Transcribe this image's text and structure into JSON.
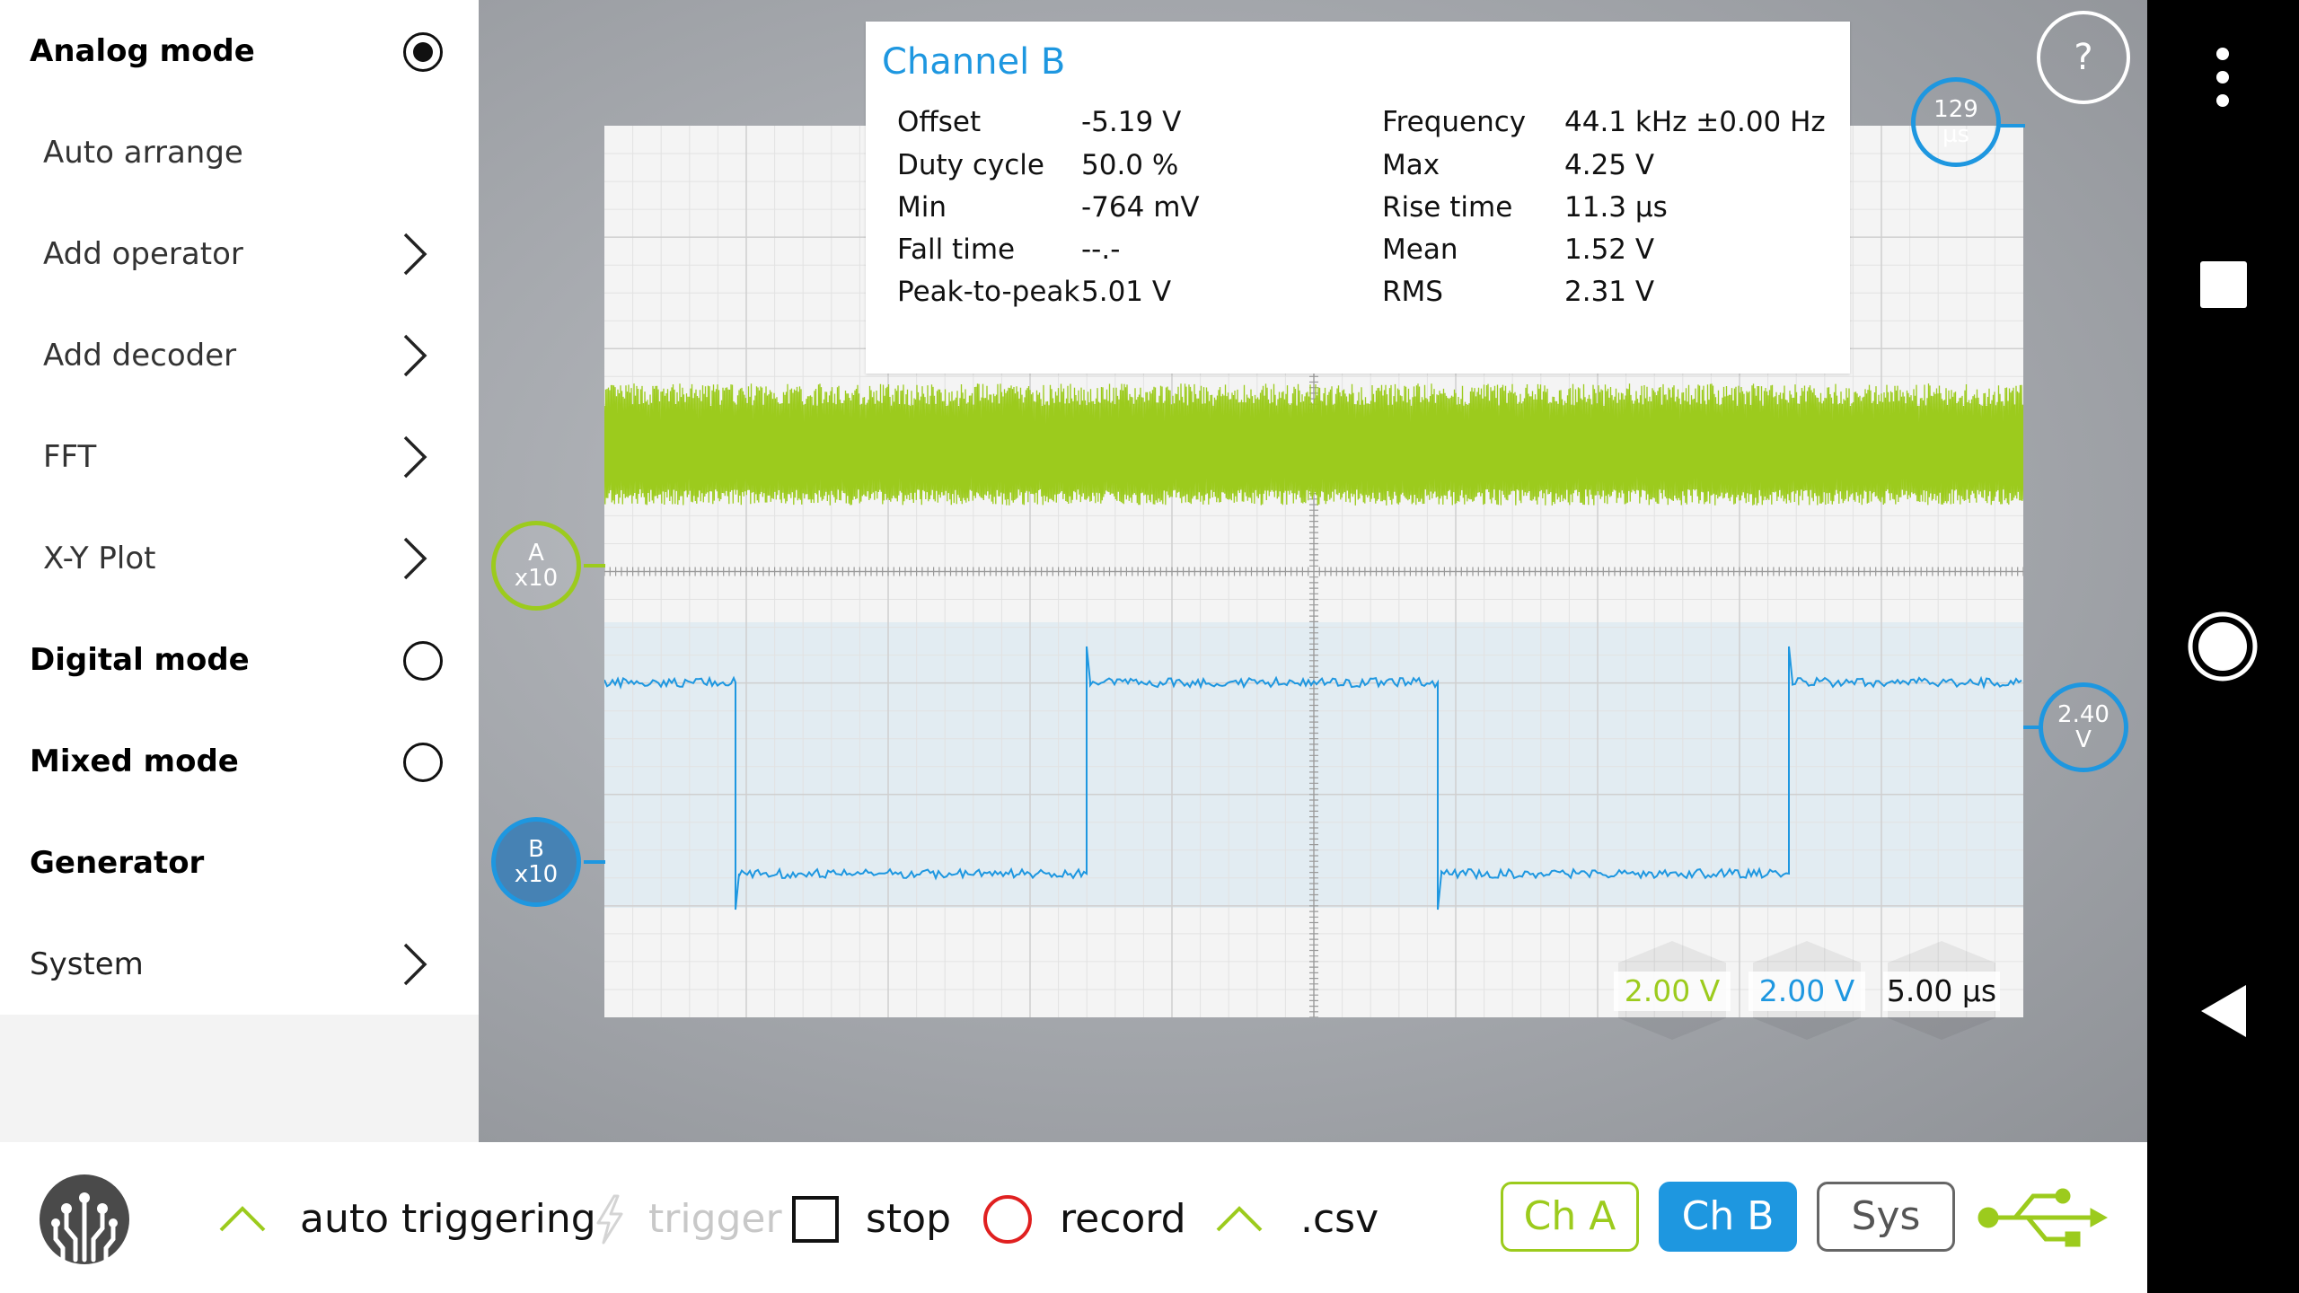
{
  "sidebar": {
    "items": [
      {
        "label": "Analog mode",
        "kind": "mode",
        "selected": true
      },
      {
        "label": "Auto arrange",
        "kind": "sub"
      },
      {
        "label": "Add operator",
        "kind": "sub-chevron"
      },
      {
        "label": "Add decoder",
        "kind": "sub-chevron"
      },
      {
        "label": "FFT",
        "kind": "sub-chevron"
      },
      {
        "label": "X-Y Plot",
        "kind": "sub-chevron"
      },
      {
        "label": "Digital mode",
        "kind": "mode",
        "selected": false
      },
      {
        "label": "Mixed mode",
        "kind": "mode",
        "selected": false
      },
      {
        "label": "Generator",
        "kind": "section"
      },
      {
        "label": "System",
        "kind": "chevron"
      }
    ]
  },
  "measurements": {
    "title": "Channel B",
    "left": [
      {
        "label": "Offset",
        "value": "-5.19 V"
      },
      {
        "label": "Duty cycle",
        "value": "50.0  %"
      },
      {
        "label": "Min",
        "value": "-764  mV"
      },
      {
        "label": "Fall time",
        "value": "--.-"
      },
      {
        "label": "Peak-to-peak",
        "value": "5.01  V"
      }
    ],
    "right": [
      {
        "label": "Frequency",
        "value": "44.1  kHz ±0.00  Hz"
      },
      {
        "label": "Max",
        "value": "4.25  V"
      },
      {
        "label": "Rise time",
        "value": "11.3  µs"
      },
      {
        "label": "Mean",
        "value": "1.52  V"
      },
      {
        "label": "RMS",
        "value": "2.31  V"
      }
    ]
  },
  "markers": {
    "channel_a": {
      "line1": "A",
      "line2": "x10"
    },
    "channel_b": {
      "line1": "B",
      "line2": "x10"
    },
    "trigger_level": {
      "line1": "2.40",
      "line2": "V"
    },
    "time_offset": {
      "line1": "129",
      "line2": "µs"
    }
  },
  "help_button": "?",
  "scales": {
    "channel_a": "2.00 V",
    "channel_b": "2.00 V",
    "time": "5.00 µs"
  },
  "toolbar": {
    "auto_triggering": "auto triggering",
    "trigger": "trigger",
    "stop": "stop",
    "record": "record",
    "csv": ".csv",
    "ch_a": "Ch A",
    "ch_b": "Ch B",
    "sys": "Sys"
  },
  "colors": {
    "channel_a": "#9ccb1d",
    "channel_b": "#1e97e0",
    "background_panel": "#f4f4f4"
  },
  "icons": {
    "logo": "circuit-logo-icon",
    "auto_triggering": "caret-up-icon",
    "trigger": "lightning-icon",
    "stop": "square-icon",
    "record": "circle-icon",
    "csv": "caret-up-icon",
    "usb": "usb-icon",
    "overflow": "more-vertical-icon",
    "recents": "square-nav-icon",
    "home": "circle-nav-icon",
    "back": "triangle-back-icon"
  }
}
